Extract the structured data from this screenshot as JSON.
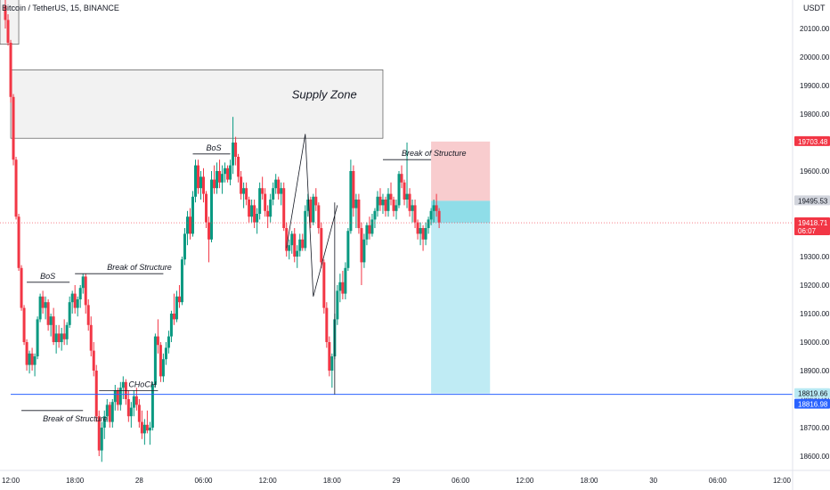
{
  "header": {
    "symbol": "Bitcoin / TetherUS, 15, BINANCE",
    "currency": "USDT"
  },
  "chart_data": {
    "type": "candlestick",
    "x_ticks": [
      {
        "label": "12:00",
        "x": 0
      },
      {
        "label": "18:00",
        "x": 24
      },
      {
        "label": "28",
        "x": 48
      },
      {
        "label": "06:00",
        "x": 72
      },
      {
        "label": "12:00",
        "x": 96
      },
      {
        "label": "18:00",
        "x": 120
      },
      {
        "label": "29",
        "x": 144
      },
      {
        "label": "06:00",
        "x": 168
      },
      {
        "label": "12:00",
        "x": 192
      },
      {
        "label": "18:00",
        "x": 216
      },
      {
        "label": "30",
        "x": 240
      },
      {
        "label": "06:00",
        "x": 264
      },
      {
        "label": "12:00",
        "x": 288
      }
    ],
    "x_range": [
      -4,
      292
    ],
    "y_ticks": [
      18600,
      18700,
      18800,
      18900,
      19000,
      19100,
      19200,
      19300,
      19400,
      19500,
      19600,
      19700,
      19800,
      19900,
      20000,
      20100
    ],
    "y_range": [
      18550,
      20200
    ],
    "candles": [
      [
        -2,
        20180,
        20220,
        20100,
        20130
      ],
      [
        -1,
        20130,
        20150,
        20040,
        20050
      ],
      [
        0,
        20050,
        20060,
        19840,
        19860
      ],
      [
        1,
        19860,
        19870,
        19620,
        19640
      ],
      [
        2,
        19640,
        19650,
        19430,
        19440
      ],
      [
        3,
        19440,
        19450,
        19250,
        19260
      ],
      [
        4,
        19260,
        19270,
        19110,
        19120
      ],
      [
        5,
        19120,
        19130,
        18990,
        19000
      ],
      [
        6,
        19000,
        19010,
        18900,
        18920
      ],
      [
        7,
        18920,
        18970,
        18890,
        18960
      ],
      [
        8,
        18960,
        18980,
        18900,
        18920
      ],
      [
        9,
        18920,
        18960,
        18880,
        18950
      ],
      [
        10,
        18950,
        19090,
        18940,
        19080
      ],
      [
        11,
        19080,
        19170,
        19070,
        19160
      ],
      [
        12,
        19160,
        19180,
        19100,
        19120
      ],
      [
        13,
        19120,
        19160,
        19080,
        19140
      ],
      [
        14,
        19140,
        19150,
        19040,
        19060
      ],
      [
        15,
        19060,
        19100,
        19020,
        19090
      ],
      [
        16,
        19090,
        19120,
        18990,
        19000
      ],
      [
        17,
        19000,
        19060,
        18960,
        19030
      ],
      [
        18,
        19030,
        19060,
        18980,
        19000
      ],
      [
        19,
        19000,
        19050,
        18970,
        19030
      ],
      [
        20,
        19030,
        19080,
        18990,
        19010
      ],
      [
        21,
        19010,
        19070,
        18990,
        19060
      ],
      [
        22,
        19060,
        19160,
        19050,
        19140
      ],
      [
        23,
        19140,
        19180,
        19100,
        19170
      ],
      [
        24,
        19170,
        19200,
        19100,
        19120
      ],
      [
        25,
        19120,
        19160,
        19090,
        19150
      ],
      [
        26,
        19150,
        19200,
        19120,
        19190
      ],
      [
        27,
        19190,
        19240,
        19170,
        19230
      ],
      [
        28,
        19230,
        19240,
        19100,
        19130
      ],
      [
        29,
        19130,
        19150,
        19040,
        19060
      ],
      [
        30,
        19060,
        19090,
        18950,
        18970
      ],
      [
        31,
        18970,
        19000,
        18880,
        18900
      ],
      [
        32,
        18900,
        18920,
        18720,
        18740
      ],
      [
        33,
        18740,
        18760,
        18600,
        18620
      ],
      [
        34,
        18620,
        18720,
        18580,
        18700
      ],
      [
        35,
        18700,
        18760,
        18660,
        18740
      ],
      [
        36,
        18740,
        18800,
        18720,
        18780
      ],
      [
        37,
        18780,
        18790,
        18700,
        18720
      ],
      [
        38,
        18720,
        18800,
        18700,
        18790
      ],
      [
        39,
        18790,
        18850,
        18760,
        18830
      ],
      [
        40,
        18830,
        18840,
        18760,
        18780
      ],
      [
        41,
        18780,
        18860,
        18760,
        18840
      ],
      [
        42,
        18840,
        18880,
        18800,
        18860
      ],
      [
        43,
        18860,
        18870,
        18780,
        18800
      ],
      [
        44,
        18800,
        18830,
        18720,
        18740
      ],
      [
        45,
        18740,
        18790,
        18700,
        18770
      ],
      [
        46,
        18770,
        18830,
        18740,
        18810
      ],
      [
        47,
        18810,
        18840,
        18760,
        18780
      ],
      [
        48,
        18780,
        18800,
        18700,
        18720
      ],
      [
        49,
        18720,
        18760,
        18660,
        18680
      ],
      [
        50,
        18680,
        18730,
        18640,
        18710
      ],
      [
        51,
        18710,
        18760,
        18680,
        18690
      ],
      [
        52,
        18690,
        18720,
        18640,
        18700
      ],
      [
        53,
        18700,
        18860,
        18690,
        18850
      ],
      [
        54,
        18850,
        19030,
        18840,
        19020
      ],
      [
        55,
        19020,
        19080,
        18960,
        18990
      ],
      [
        56,
        18990,
        19000,
        18860,
        18880
      ],
      [
        57,
        18880,
        18960,
        18860,
        18940
      ],
      [
        58,
        18940,
        19000,
        18920,
        18980
      ],
      [
        59,
        18980,
        19040,
        18960,
        19020
      ],
      [
        60,
        19020,
        19110,
        19000,
        19100
      ],
      [
        61,
        19100,
        19170,
        19060,
        19080
      ],
      [
        62,
        19080,
        19180,
        19070,
        19160
      ],
      [
        63,
        19160,
        19200,
        19120,
        19140
      ],
      [
        64,
        19140,
        19300,
        19130,
        19290
      ],
      [
        65,
        19290,
        19400,
        19270,
        19380
      ],
      [
        66,
        19380,
        19460,
        19340,
        19440
      ],
      [
        67,
        19440,
        19470,
        19360,
        19380
      ],
      [
        68,
        19380,
        19530,
        19370,
        19510
      ],
      [
        69,
        19510,
        19640,
        19490,
        19620
      ],
      [
        70,
        19620,
        19640,
        19520,
        19540
      ],
      [
        71,
        19540,
        19600,
        19500,
        19580
      ],
      [
        72,
        19580,
        19610,
        19490,
        19520
      ],
      [
        73,
        19520,
        19530,
        19400,
        19420
      ],
      [
        74,
        19420,
        19440,
        19280,
        19360
      ],
      [
        75,
        19360,
        19600,
        19350,
        19570
      ],
      [
        76,
        19570,
        19620,
        19520,
        19540
      ],
      [
        77,
        19540,
        19630,
        19520,
        19600
      ],
      [
        78,
        19600,
        19640,
        19540,
        19560
      ],
      [
        79,
        19560,
        19620,
        19520,
        19590
      ],
      [
        80,
        19590,
        19630,
        19560,
        19610
      ],
      [
        81,
        19610,
        19620,
        19560,
        19570
      ],
      [
        82,
        19570,
        19640,
        19550,
        19620
      ],
      [
        83,
        19620,
        19790,
        19590,
        19700
      ],
      [
        84,
        19700,
        19720,
        19620,
        19650
      ],
      [
        85,
        19650,
        19660,
        19560,
        19580
      ],
      [
        86,
        19580,
        19600,
        19500,
        19520
      ],
      [
        87,
        19520,
        19560,
        19470,
        19540
      ],
      [
        88,
        19540,
        19560,
        19480,
        19500
      ],
      [
        89,
        19500,
        19510,
        19420,
        19440
      ],
      [
        90,
        19440,
        19500,
        19420,
        19480
      ],
      [
        91,
        19480,
        19500,
        19400,
        19420
      ],
      [
        92,
        19420,
        19470,
        19380,
        19450
      ],
      [
        93,
        19450,
        19560,
        19430,
        19540
      ],
      [
        94,
        19540,
        19580,
        19500,
        19520
      ],
      [
        95,
        19520,
        19540,
        19440,
        19460
      ],
      [
        96,
        19460,
        19480,
        19400,
        19440
      ],
      [
        97,
        19440,
        19520,
        19420,
        19500
      ],
      [
        98,
        19500,
        19560,
        19480,
        19540
      ],
      [
        99,
        19540,
        19590,
        19520,
        19570
      ],
      [
        100,
        19570,
        19580,
        19500,
        19520
      ],
      [
        101,
        19520,
        19560,
        19480,
        19540
      ],
      [
        102,
        19540,
        19560,
        19390,
        19400
      ],
      [
        103,
        19400,
        19420,
        19300,
        19320
      ],
      [
        104,
        19320,
        19360,
        19290,
        19340
      ],
      [
        105,
        19340,
        19390,
        19310,
        19380
      ],
      [
        106,
        19380,
        19400,
        19280,
        19300
      ],
      [
        107,
        19300,
        19340,
        19260,
        19320
      ],
      [
        108,
        19320,
        19380,
        19300,
        19360
      ],
      [
        109,
        19360,
        19380,
        19320,
        19330
      ],
      [
        110,
        19330,
        19480,
        19320,
        19460
      ],
      [
        111,
        19460,
        19520,
        19440,
        19500
      ],
      [
        112,
        19500,
        19510,
        19400,
        19420
      ],
      [
        113,
        19420,
        19520,
        19410,
        19510
      ],
      [
        114,
        19510,
        19540,
        19460,
        19480
      ],
      [
        115,
        19480,
        19490,
        19380,
        19400
      ],
      [
        116,
        19400,
        19420,
        19260,
        19280
      ],
      [
        117,
        19280,
        19290,
        19100,
        19120
      ],
      [
        118,
        19120,
        19140,
        18980,
        19000
      ],
      [
        119,
        19000,
        19020,
        18880,
        18900
      ],
      [
        120,
        18900,
        18960,
        18840,
        18950
      ],
      [
        121,
        18950,
        19100,
        18940,
        19080
      ],
      [
        122,
        19080,
        19200,
        19060,
        19180
      ],
      [
        123,
        19180,
        19240,
        19140,
        19210
      ],
      [
        124,
        19210,
        19250,
        19150,
        19170
      ],
      [
        125,
        19170,
        19280,
        19150,
        19260
      ],
      [
        126,
        19260,
        19400,
        19250,
        19390
      ],
      [
        127,
        19390,
        19640,
        19380,
        19600
      ],
      [
        128,
        19600,
        19620,
        19440,
        19470
      ],
      [
        129,
        19470,
        19520,
        19400,
        19500
      ],
      [
        130,
        19500,
        19520,
        19380,
        19400
      ],
      [
        131,
        19400,
        19420,
        19200,
        19280
      ],
      [
        132,
        19280,
        19380,
        19260,
        19360
      ],
      [
        133,
        19360,
        19420,
        19340,
        19410
      ],
      [
        134,
        19410,
        19440,
        19360,
        19380
      ],
      [
        135,
        19380,
        19450,
        19370,
        19430
      ],
      [
        136,
        19430,
        19470,
        19400,
        19460
      ],
      [
        137,
        19460,
        19530,
        19440,
        19510
      ],
      [
        138,
        19510,
        19540,
        19460,
        19480
      ],
      [
        139,
        19480,
        19520,
        19450,
        19500
      ],
      [
        140,
        19500,
        19510,
        19440,
        19460
      ],
      [
        141,
        19460,
        19540,
        19440,
        19520
      ],
      [
        142,
        19520,
        19560,
        19480,
        19500
      ],
      [
        143,
        19500,
        19510,
        19440,
        19460
      ],
      [
        144,
        19460,
        19500,
        19430,
        19480
      ],
      [
        145,
        19480,
        19600,
        19470,
        19590
      ],
      [
        146,
        19590,
        19620,
        19540,
        19560
      ],
      [
        147,
        19560,
        19570,
        19480,
        19500
      ],
      [
        148,
        19500,
        19700,
        19470,
        19520
      ],
      [
        149,
        19520,
        19540,
        19440,
        19460
      ],
      [
        150,
        19460,
        19500,
        19420,
        19480
      ],
      [
        151,
        19480,
        19500,
        19400,
        19420
      ],
      [
        152,
        19420,
        19430,
        19360,
        19380
      ],
      [
        153,
        19380,
        19420,
        19340,
        19400
      ],
      [
        154,
        19400,
        19410,
        19320,
        19360
      ],
      [
        155,
        19360,
        19420,
        19340,
        19400
      ],
      [
        156,
        19400,
        19440,
        19380,
        19430
      ],
      [
        157,
        19430,
        19470,
        19410,
        19460
      ],
      [
        158,
        19460,
        19500,
        19420,
        19480
      ],
      [
        159,
        19480,
        19520,
        19440,
        19460
      ],
      [
        160,
        19460,
        19470,
        19400,
        19420
      ]
    ],
    "current_price": 19418.71,
    "price_labels": [
      {
        "key": "stop_loss",
        "value": "19703.48"
      },
      {
        "key": "entry",
        "value": "19495.53"
      },
      {
        "key": "current",
        "value": "19418.71",
        "timer": "06:07"
      },
      {
        "key": "take_profit",
        "value": "18819.66"
      },
      {
        "key": "horizontal_line",
        "value": "18816.98"
      }
    ],
    "zones": {
      "supply_top": 19955,
      "supply_bottom": 19715,
      "supply_x": [
        0,
        139
      ],
      "supply_label": "Supply Zone",
      "topleft_box": [
        -4,
        3,
        20350,
        20045
      ]
    },
    "position": {
      "x_start": 157,
      "x_end": 179,
      "stop_loss": 19703.48,
      "entry": 19495.53,
      "take_profit": 18819.66
    },
    "horizontal_line": 18816.98,
    "annotations": [
      {
        "text": "BoS",
        "x": 11,
        "y": 19210,
        "line_x": [
          6,
          22
        ]
      },
      {
        "text": "Break of Structure",
        "x": 36,
        "y": 19240,
        "line_x": [
          24,
          57
        ]
      },
      {
        "text": "Break of Structure",
        "x": 12,
        "y": 18760,
        "line_x": [
          4,
          27
        ],
        "below": true
      },
      {
        "text": "CHoCH",
        "x": 44,
        "y": 18830,
        "line_x": [
          33,
          55
        ]
      },
      {
        "text": "BoS",
        "x": 73,
        "y": 19660,
        "line_x": [
          68,
          82
        ]
      },
      {
        "text": "Break of Structure",
        "x": 146,
        "y": 19640,
        "line_x": [
          139,
          157
        ]
      }
    ],
    "zigzag": [
      [
        103,
        19330
      ],
      [
        110,
        19730
      ],
      [
        113,
        19160
      ],
      [
        122,
        19480
      ]
    ],
    "vertical_line_x": 121
  }
}
